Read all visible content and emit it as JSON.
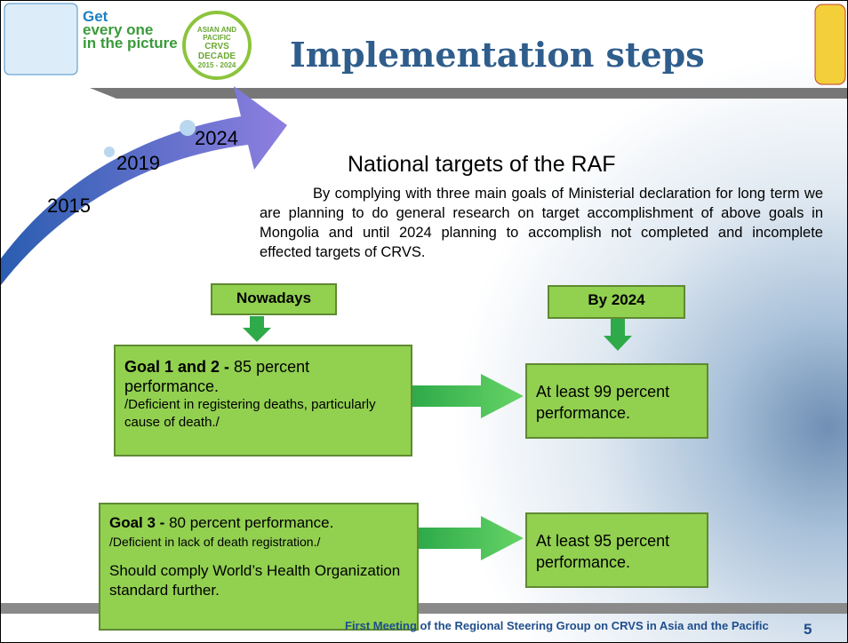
{
  "header": {
    "logo_lines": [
      "Get",
      "every one",
      "in the picture"
    ],
    "badge_lines": [
      "ASIAN AND PACIFIC",
      "CRVS DECADE",
      "2015 - 2024"
    ],
    "title": "Implementation steps"
  },
  "timeline": {
    "years": [
      "2015",
      "2019",
      "2024"
    ]
  },
  "intro": {
    "heading": "National targets of the RAF",
    "text": "By complying with three main goals of Ministerial declaration for long term we are planning to do general research on target accomplishment of above goals in Mongolia and until 2024 planning to accomplish not completed and incomplete effected targets of CRVS."
  },
  "columns": {
    "now": "Nowadays",
    "future": "By 2024"
  },
  "rows": [
    {
      "goal_bold": "Goal 1 and 2 -",
      "goal_text": "85 percent performance.",
      "note": "/Deficient in registering deaths, particularly cause of death./",
      "extra": null,
      "target": "At least 99 percent performance."
    },
    {
      "goal_bold": "Goal 3 -",
      "goal_text": "80 percent performance.",
      "note": "/Deficient in lack of death registration./",
      "extra": "Should comply World’s Health Organization standard further.",
      "target": "At least 95 percent performance."
    }
  ],
  "footer": {
    "text": "First Meeting of the Regional Steering Group on CRVS in Asia and the Pacific",
    "page": "5"
  }
}
